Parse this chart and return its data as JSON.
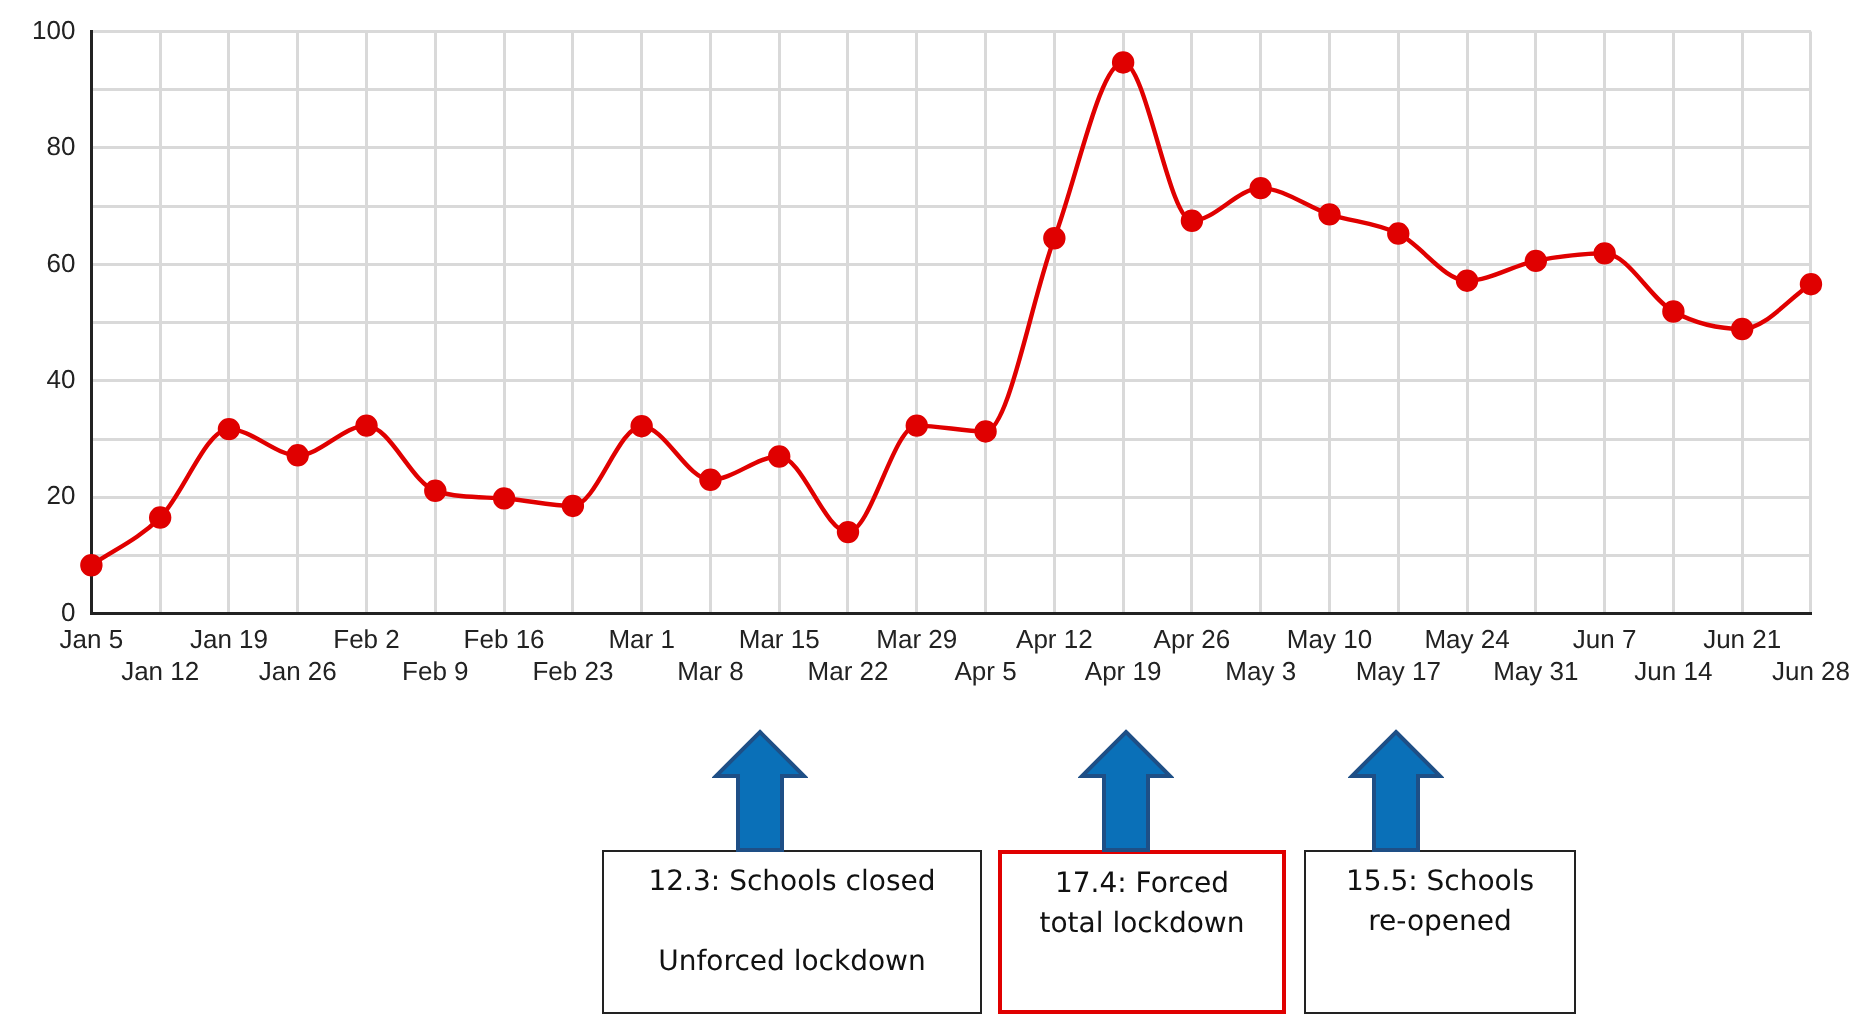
{
  "chart_data": {
    "type": "line",
    "categories": [
      "Jan 5",
      "Jan 12",
      "Jan 19",
      "Jan 26",
      "Feb 2",
      "Feb 9",
      "Feb 16",
      "Feb 23",
      "Mar 1",
      "Mar 8",
      "Mar 15",
      "Mar 22",
      "Mar 29",
      "Apr 5",
      "Apr 12",
      "Apr 19",
      "Apr 26",
      "May 3",
      "May 10",
      "May 17",
      "May 24",
      "May 31",
      "Jun 7",
      "Jun 14",
      "Jun 21",
      "Jun 28"
    ],
    "series": [
      {
        "color": "#e00000",
        "values": [
          8.3,
          16.5,
          31.7,
          27.2,
          32.3,
          21.1,
          19.8,
          18.5,
          32.2,
          23.0,
          27.0,
          14.0,
          32.3,
          31.3,
          64.5,
          94.7,
          67.5,
          73.1,
          68.6,
          65.3,
          57.2,
          60.6,
          61.9,
          51.9,
          48.9,
          56.6
        ]
      }
    ],
    "ylim": [
      0,
      100
    ],
    "yticks": [
      0,
      {
        "value": 10,
        "label": null
      },
      20,
      {
        "value": 30,
        "label": null
      },
      40,
      {
        "value": 50,
        "label": null
      },
      60,
      {
        "value": 70,
        "label": null
      },
      80,
      {
        "value": 90,
        "label": null
      },
      100
    ],
    "grid": true,
    "legend": false,
    "marker": "circle",
    "line_style": "solid",
    "annotations": [
      "12.3: Schools closed\n\nUnforced lockdown",
      "17.4: Forced\ntotal lockdown",
      "15.5: Schools\nre-opened"
    ]
  }
}
